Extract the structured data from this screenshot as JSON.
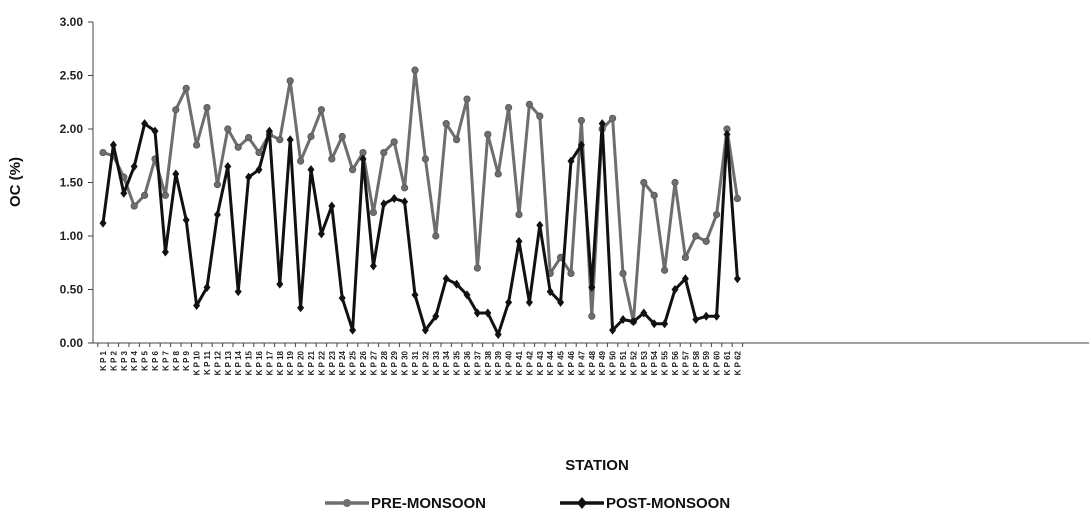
{
  "chart_data": {
    "type": "line",
    "xlabel": "STATION",
    "ylabel": "OC (%)",
    "ylim": [
      0,
      3
    ],
    "yticks": [
      "0.00",
      "0.50",
      "1.00",
      "1.50",
      "2.00",
      "2.50",
      "3.00"
    ],
    "grid": false,
    "legend_position": "bottom",
    "categories": [
      "K P 1",
      "K P 2",
      "K P 3",
      "K P 4",
      "K P 5",
      "K P 6",
      "K P 7",
      "K P 8",
      "K P 9",
      "K P 10",
      "K P 11",
      "K P 12",
      "K P 13",
      "K P 14",
      "K P 15",
      "K P 16",
      "K P 17",
      "K P 18",
      "K P 19",
      "K P 20",
      "K P 21",
      "K P 22",
      "K P 23",
      "K P 24",
      "K P 25",
      "K P 26",
      "K P 27",
      "K P 28",
      "K P 29",
      "K P 30",
      "K P 31",
      "K P 32",
      "K P 33",
      "K P 34",
      "K P 35",
      "K P 36",
      "K P 37",
      "K P 38",
      "K P 39",
      "K P 40",
      "K P 41",
      "K P 42",
      "K P 43",
      "K P 44",
      "K P 45",
      "K P 46",
      "K P 47",
      "K P 48",
      "K P 49",
      "K P 50",
      "K P 51",
      "K P 52",
      "K P 53",
      "K P 54",
      "K P 55",
      "K P 56",
      "K P 57",
      "K P 58",
      "K P 59",
      "K P 60",
      "K P 61",
      "K P 62"
    ],
    "series": [
      {
        "name": "PRE-MONSOON",
        "color": "#6e6e6e",
        "marker": "circle",
        "values": [
          1.78,
          1.75,
          1.55,
          1.28,
          1.38,
          1.72,
          1.38,
          2.18,
          2.38,
          1.85,
          2.2,
          1.48,
          2.0,
          1.83,
          1.92,
          1.78,
          1.95,
          1.9,
          2.45,
          1.7,
          1.93,
          2.18,
          1.72,
          1.93,
          1.62,
          1.78,
          1.22,
          1.78,
          1.88,
          1.45,
          2.55,
          1.72,
          1.0,
          2.05,
          1.9,
          2.28,
          0.7,
          1.95,
          1.58,
          2.2,
          1.2,
          2.23,
          2.12,
          0.65,
          0.8,
          0.65,
          2.08,
          0.25,
          2.0,
          2.1,
          0.65,
          0.2,
          1.5,
          1.38,
          0.68,
          1.5,
          0.8,
          1.0,
          0.95,
          1.2,
          2.0,
          1.35
        ]
      },
      {
        "name": "POST-MONSOON",
        "color": "#111111",
        "marker": "diamond",
        "values": [
          1.12,
          1.85,
          1.4,
          1.65,
          2.05,
          1.98,
          0.85,
          1.58,
          1.15,
          0.35,
          0.52,
          1.2,
          1.65,
          0.48,
          1.55,
          1.62,
          1.98,
          0.55,
          1.9,
          0.33,
          1.62,
          1.02,
          1.28,
          0.42,
          0.12,
          1.72,
          0.72,
          1.3,
          1.35,
          1.32,
          0.45,
          0.12,
          0.25,
          0.6,
          0.55,
          0.45,
          0.28,
          0.28,
          0.08,
          0.38,
          0.95,
          0.38,
          1.1,
          0.48,
          0.38,
          1.7,
          1.85,
          0.52,
          2.05,
          0.12,
          0.22,
          0.2,
          0.28,
          0.18,
          0.18,
          0.5,
          0.6,
          0.22,
          0.25,
          0.25,
          1.95,
          0.6
        ]
      }
    ]
  }
}
